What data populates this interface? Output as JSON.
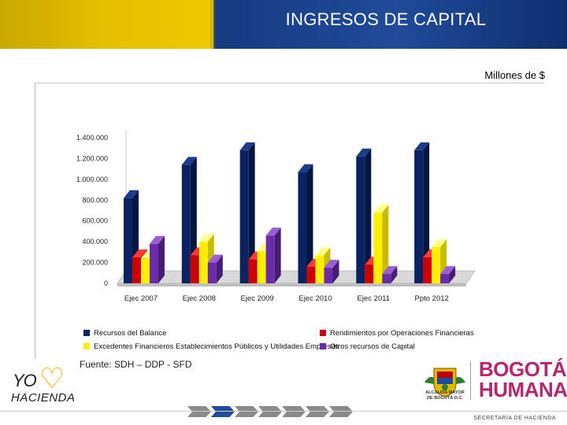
{
  "title": "INGRESOS DE CAPITAL",
  "units": "Millones de $",
  "source": "Fuente: SDH – DDP - SFD",
  "footer": "SECRETARÍA DE HACIENDA",
  "logos": {
    "yo_hacienda_line1": "YO",
    "yo_hacienda_line2": "HACIENDA",
    "alcaldia_line1": "ALCALDÍA MAYOR",
    "alcaldia_line2": "DE BOGOTÁ D.C.",
    "bogota_line1": "BOGOTÁ",
    "bogota_line2": "HUMANA"
  },
  "colors": {
    "series": [
      "#0a2463",
      "#cc0000",
      "#ffee00",
      "#6a2ca8"
    ],
    "header_gold": "#f0c800",
    "header_blue": "#1f4b9a"
  },
  "chart_data": {
    "type": "bar",
    "categories": [
      "Ejec 2007",
      "Ejec 2008",
      "Ejec 2009",
      "Ejec 2010",
      "Ejec 2011",
      "Ppto 2012"
    ],
    "series": [
      {
        "name": "Recursos del Balance",
        "values": [
          820000,
          1140000,
          1280000,
          1070000,
          1220000,
          1280000
        ]
      },
      {
        "name": "Rendimientos por Operaciones Financieras",
        "values": [
          250000,
          270000,
          230000,
          160000,
          180000,
          250000
        ]
      },
      {
        "name": "Excedentes Financieros Establecimientos Públicos y Utilidades Empresas",
        "values": [
          240000,
          400000,
          310000,
          270000,
          680000,
          350000
        ]
      },
      {
        "name": "Otros recursos de Capital",
        "values": [
          380000,
          200000,
          460000,
          150000,
          90000,
          90000
        ]
      }
    ],
    "yticks": [
      "1.400.000",
      "1.200.000",
      "1.000.000",
      "800.000",
      "600.000",
      "400.000",
      "200.000",
      "0"
    ],
    "ylim": [
      0,
      1400000
    ],
    "legend_labels": [
      "Recursos del Balance",
      "Rendimientos por Operaciones Financieras",
      "Excedentes Financieros Establecimientos Públicos y Utilidades Empresas",
      "Otros recursos de Capital"
    ],
    "legend_position": "bottom",
    "grid": false
  }
}
